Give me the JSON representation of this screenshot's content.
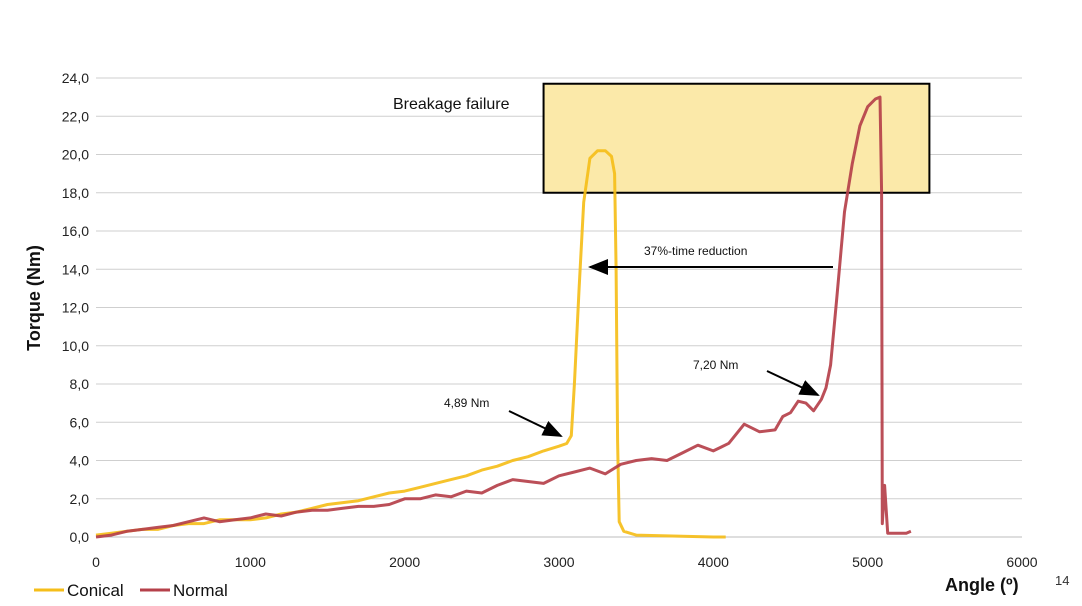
{
  "chart_data": {
    "type": "line",
    "title": "",
    "xlabel": "Angle (º)",
    "ylabel": "Torque (Nm)",
    "xlim": [
      0,
      6000
    ],
    "ylim": [
      0,
      24
    ],
    "x_ticks": [
      0,
      1000,
      2000,
      3000,
      4000,
      5000,
      6000
    ],
    "x_tick_labels": [
      "0",
      "1000",
      "2000",
      "3000",
      "4000",
      "5000",
      "6000"
    ],
    "y_ticks": [
      0,
      2,
      4,
      6,
      8,
      10,
      12,
      14,
      16,
      18,
      20,
      22,
      24
    ],
    "y_tick_labels": [
      "0,0",
      "2,0",
      "4,0",
      "6,0",
      "8,0",
      "10,0",
      "12,0",
      "14,0",
      "16,0",
      "18,0",
      "20,0",
      "22,0",
      "24,0"
    ],
    "grid": true,
    "legend_position": "bottom-left",
    "series": [
      {
        "name": "Conical",
        "color": "#F5BE1A",
        "x": [
          0,
          100,
          200,
          300,
          400,
          500,
          600,
          700,
          800,
          900,
          1000,
          1100,
          1200,
          1300,
          1400,
          1500,
          1600,
          1700,
          1800,
          1900,
          2000,
          2100,
          2200,
          2300,
          2400,
          2500,
          2600,
          2700,
          2800,
          2900,
          3000,
          3050,
          3080,
          3100,
          3130,
          3160,
          3200,
          3250,
          3300,
          3340,
          3360,
          3370,
          3380,
          3390,
          3420,
          3500,
          4000,
          4080
        ],
        "y": [
          0.1,
          0.2,
          0.3,
          0.4,
          0.4,
          0.6,
          0.7,
          0.7,
          0.9,
          0.9,
          0.9,
          1.0,
          1.2,
          1.3,
          1.5,
          1.7,
          1.8,
          1.9,
          2.1,
          2.3,
          2.4,
          2.6,
          2.8,
          3.0,
          3.2,
          3.5,
          3.7,
          4.0,
          4.2,
          4.5,
          4.75,
          4.89,
          5.3,
          8.0,
          13.0,
          17.5,
          19.8,
          20.2,
          20.2,
          19.9,
          19.0,
          14.0,
          5.0,
          0.8,
          0.3,
          0.1,
          0.0,
          0.0
        ]
      },
      {
        "name": "Normal",
        "color": "#B5404A",
        "x": [
          0,
          100,
          200,
          300,
          400,
          500,
          600,
          700,
          800,
          900,
          1000,
          1100,
          1200,
          1300,
          1400,
          1500,
          1600,
          1700,
          1800,
          1900,
          2000,
          2100,
          2200,
          2300,
          2400,
          2500,
          2600,
          2700,
          2800,
          2900,
          3000,
          3100,
          3200,
          3300,
          3400,
          3500,
          3600,
          3700,
          3800,
          3900,
          4000,
          4050,
          4100,
          4200,
          4300,
          4400,
          4450,
          4500,
          4550,
          4600,
          4650,
          4700,
          4730,
          4760,
          4800,
          4850,
          4900,
          4950,
          5000,
          5050,
          5080,
          5090,
          5095,
          5110,
          5130,
          5150,
          5200,
          5250,
          5280
        ],
        "y": [
          0.0,
          0.1,
          0.3,
          0.4,
          0.5,
          0.6,
          0.8,
          1.0,
          0.8,
          0.9,
          1.0,
          1.2,
          1.1,
          1.3,
          1.4,
          1.4,
          1.5,
          1.6,
          1.6,
          1.7,
          2.0,
          2.0,
          2.2,
          2.1,
          2.4,
          2.3,
          2.7,
          3.0,
          2.9,
          2.8,
          3.2,
          3.4,
          3.6,
          3.3,
          3.8,
          4.0,
          4.1,
          4.0,
          4.4,
          4.8,
          4.5,
          4.7,
          4.9,
          5.9,
          5.5,
          5.6,
          6.3,
          6.5,
          7.1,
          7.0,
          6.6,
          7.2,
          7.8,
          9.0,
          12.5,
          17.0,
          19.5,
          21.5,
          22.5,
          22.9,
          23.0,
          18.0,
          0.7,
          2.7,
          0.2,
          0.2,
          0.2,
          0.2,
          0.3
        ]
      }
    ],
    "annotations": [
      {
        "text": "Breakage failure"
      },
      {
        "text": "37%-time reduction"
      },
      {
        "text": "4,89 Nm"
      },
      {
        "text": "7,20 Nm"
      }
    ],
    "highlight_box": {
      "x_range": [
        2900,
        5400
      ],
      "y_range": [
        18.0,
        23.7
      ],
      "fill": "#FBE9A9",
      "stroke": "#000000"
    }
  },
  "page_number": "14"
}
